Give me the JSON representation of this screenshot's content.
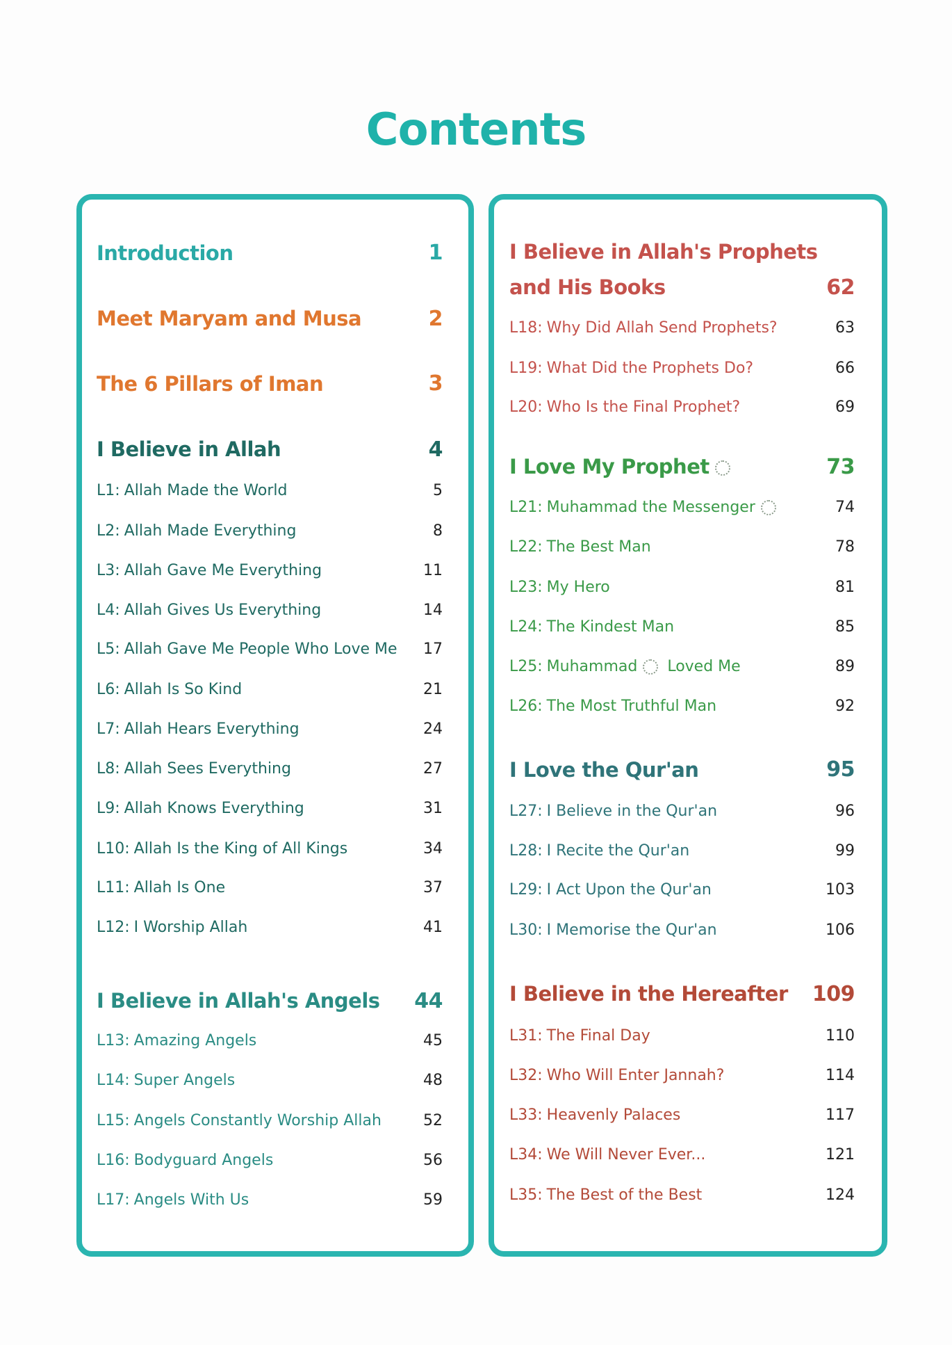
{
  "title": "Contents",
  "colors": {
    "border": "#2ab5b0",
    "title": "#1fb2aa"
  },
  "left": [
    {
      "type": "head",
      "text": "Introduction",
      "page": "1",
      "color": "#2aa9a6"
    },
    {
      "type": "head",
      "text": "Meet Maryam and Musa",
      "page": "2",
      "color": "#e0772f"
    },
    {
      "type": "head",
      "text": "The 6 Pillars of Iman",
      "page": "3",
      "color": "#e0772f"
    },
    {
      "type": "head",
      "text": "I Believe in Allah",
      "page": "4",
      "color": "#1f6a62"
    },
    {
      "type": "lesson",
      "label": "L1:",
      "text": "Allah Made the World",
      "page": "5",
      "color": "#1f6a62"
    },
    {
      "type": "lesson",
      "label": "L2:",
      "text": "Allah Made Everything",
      "page": "8",
      "color": "#1f6a62"
    },
    {
      "type": "lesson",
      "label": "L3:",
      "text": "Allah Gave Me Everything",
      "page": "11",
      "color": "#1f6a62"
    },
    {
      "type": "lesson",
      "label": "L4:",
      "text": "Allah Gives Us Everything",
      "page": "14",
      "color": "#1f6a62"
    },
    {
      "type": "lesson",
      "label": "L5:",
      "text": "Allah Gave Me People Who Love Me",
      "page": "17",
      "color": "#1f6a62"
    },
    {
      "type": "lesson",
      "label": "L6:",
      "text": "Allah Is So Kind",
      "page": "21",
      "color": "#1f6a62"
    },
    {
      "type": "lesson",
      "label": "L7:",
      "text": "Allah Hears Everything",
      "page": "24",
      "color": "#1f6a62"
    },
    {
      "type": "lesson",
      "label": "L8:",
      "text": "Allah Sees Everything",
      "page": "27",
      "color": "#1f6a62"
    },
    {
      "type": "lesson",
      "label": "L9:",
      "text": "Allah Knows Everything",
      "page": "31",
      "color": "#1f6a62"
    },
    {
      "type": "lesson",
      "label": "L10:",
      "text": "Allah Is the King of All Kings",
      "page": "34",
      "color": "#1f6a62"
    },
    {
      "type": "lesson",
      "label": "L11:",
      "text": "Allah Is One",
      "page": "37",
      "color": "#1f6a62"
    },
    {
      "type": "lesson",
      "label": "L12:",
      "text": "I Worship Allah",
      "page": "41",
      "color": "#1f6a62"
    },
    {
      "type": "head",
      "text": "I Believe in Allah's Angels",
      "page": "44",
      "color": "#2a8c84"
    },
    {
      "type": "lesson",
      "label": "L13:",
      "text": "Amazing Angels",
      "page": "45",
      "color": "#2a8c84"
    },
    {
      "type": "lesson",
      "label": "L14:",
      "text": "Super Angels",
      "page": "48",
      "color": "#2a8c84"
    },
    {
      "type": "lesson",
      "label": "L15:",
      "text": "Angels Constantly Worship Allah",
      "page": "52",
      "color": "#2a8c84"
    },
    {
      "type": "lesson",
      "label": "L16:",
      "text": "Bodyguard Angels",
      "page": "56",
      "color": "#2a8c84"
    },
    {
      "type": "lesson",
      "label": "L17:",
      "text": "Angels With Us",
      "page": "59",
      "color": "#2a8c84"
    }
  ],
  "right": [
    {
      "type": "head",
      "text": "I Believe in Allah's Prophets",
      "page": "",
      "color": "#c4524c"
    },
    {
      "type": "head",
      "text": "and His Books",
      "page": "62",
      "color": "#c4524c"
    },
    {
      "type": "lesson",
      "label": "L18:",
      "text": "Why Did Allah Send Prophets?",
      "page": "63",
      "color": "#c4524c"
    },
    {
      "type": "lesson",
      "label": "L19:",
      "text": "What Did the Prophets Do?",
      "page": "66",
      "color": "#c4524c"
    },
    {
      "type": "lesson",
      "label": "L20:",
      "text": "Who Is the Final Prophet?",
      "page": "69",
      "color": "#c4524c"
    },
    {
      "type": "head",
      "text": "I Love My Prophet",
      "page": "73",
      "color": "#3a9a48",
      "pbuh": true
    },
    {
      "type": "lesson",
      "label": "L21:",
      "text": "Muhammad the Messenger",
      "page": "74",
      "color": "#3a9a48",
      "pbuh": true
    },
    {
      "type": "lesson",
      "label": "L22:",
      "text": "The Best Man",
      "page": "78",
      "color": "#3a9a48"
    },
    {
      "type": "lesson",
      "label": "L23:",
      "text": "My Hero",
      "page": "81",
      "color": "#3a9a48"
    },
    {
      "type": "lesson",
      "label": "L24:",
      "text": "The Kindest Man",
      "page": "85",
      "color": "#3a9a48"
    },
    {
      "type": "lesson",
      "label": "L25:",
      "text": "Muhammad",
      "text2": "Loved Me",
      "page": "89",
      "color": "#3a9a48",
      "pbuh": true
    },
    {
      "type": "lesson",
      "label": "L26:",
      "text": "The Most Truthful Man",
      "page": "92",
      "color": "#3a9a48"
    },
    {
      "type": "head",
      "text": "I Love the Qur'an",
      "page": "95",
      "color": "#2f7479"
    },
    {
      "type": "lesson",
      "label": "L27:",
      "text": "I Believe in the Qur'an",
      "page": "96",
      "color": "#2f7479"
    },
    {
      "type": "lesson",
      "label": "L28:",
      "text": "I Recite the Qur'an",
      "page": "99",
      "color": "#2f7479"
    },
    {
      "type": "lesson",
      "label": "L29:",
      "text": "I Act Upon the Qur'an",
      "page": "103",
      "color": "#2f7479"
    },
    {
      "type": "lesson",
      "label": "L30:",
      "text": "I Memorise the Qur'an",
      "page": "106",
      "color": "#2f7479"
    },
    {
      "type": "head",
      "text": "I Believe in the Hereafter",
      "page": "109",
      "color": "#b34a38"
    },
    {
      "type": "lesson",
      "label": "L31:",
      "text": "The Final Day",
      "page": "110",
      "color": "#b34a38"
    },
    {
      "type": "lesson",
      "label": "L32:",
      "text": "Who Will Enter Jannah?",
      "page": "114",
      "color": "#b34a38"
    },
    {
      "type": "lesson",
      "label": "L33:",
      "text": "Heavenly Palaces",
      "page": "117",
      "color": "#b34a38"
    },
    {
      "type": "lesson",
      "label": "L34:",
      "text": "We Will Never Ever...",
      "page": "121",
      "color": "#b34a38"
    },
    {
      "type": "lesson",
      "label": "L35:",
      "text": "The Best of the Best",
      "page": "124",
      "color": "#b34a38"
    }
  ]
}
